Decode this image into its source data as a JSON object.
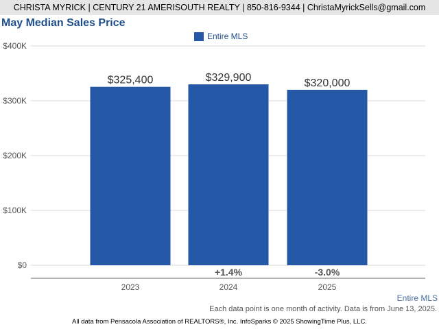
{
  "header": {
    "text": "CHRISTA MYRICK | CENTURY 21 AMERISOUTH REALTY | 850-816-9344 | ChristaMyrickSells@gmail.com"
  },
  "chart_data": {
    "type": "bar",
    "title": "May Median Sales Price",
    "categories": [
      "2023",
      "2024",
      "2025"
    ],
    "series": [
      {
        "name": "Entire MLS",
        "color": "#2457a5",
        "values": [
          325400,
          329900,
          320000
        ],
        "value_labels": [
          "$325,400",
          "$329,900",
          "$320,000"
        ]
      }
    ],
    "change_labels": [
      "",
      "+1.4%",
      "-3.0%"
    ],
    "y_ticks": [
      0,
      100000,
      200000,
      300000,
      400000
    ],
    "y_tick_labels": [
      "$0",
      "$100K",
      "$200K",
      "$300K",
      "$400K"
    ],
    "ylim": [
      0,
      400000
    ],
    "grid": true,
    "legend_position": "top-center"
  },
  "footer": {
    "legend_label": "Entire MLS",
    "note": "Each data point is one month of activity. Data is from June 13, 2025.",
    "credit": "All data from Pensacola Association of REALTORS®, Inc. InfoSparks © 2025 ShowingTime Plus, LLC."
  }
}
